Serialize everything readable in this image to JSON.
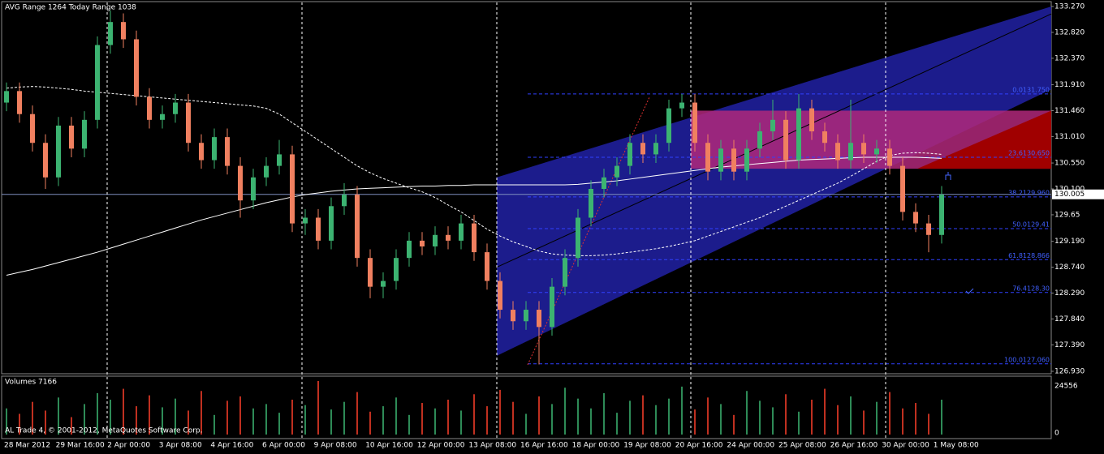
{
  "chart_data": [
    {
      "type": "candlestick",
      "title": "AVG Range 1264   Today Range 1038",
      "up_color": "#3cb371",
      "down_color": "#f08060",
      "ylim": [
        126.93,
        133.27
      ],
      "yticks": [
        {
          "value": 133.27,
          "label": "133.270"
        },
        {
          "value": 132.82,
          "label": "132.820"
        },
        {
          "value": 132.37,
          "label": "132.370"
        },
        {
          "value": 131.91,
          "label": "131.910"
        },
        {
          "value": 131.46,
          "label": "131.460"
        },
        {
          "value": 131.01,
          "label": "131.010"
        },
        {
          "value": 130.55,
          "label": "130.550"
        },
        {
          "value": 130.1,
          "label": "130.100"
        },
        129.65,
        {
          "value": 129.19,
          "label": "129.190"
        },
        {
          "value": 128.74,
          "label": "128.740"
        },
        {
          "value": 128.29,
          "label": "128.290"
        },
        {
          "value": 127.84,
          "label": "127.840"
        },
        {
          "value": 127.39,
          "label": "127.390"
        },
        {
          "value": 126.93,
          "label": "126.930"
        }
      ],
      "last_price": {
        "value": 130.005,
        "label": "130.005"
      },
      "x_labels": [
        "28 Mar 2012",
        "29 Mar 16:00",
        "2 Apr 00:00",
        "3 Apr 08:00",
        "4 Apr 16:00",
        "6 Apr 00:00",
        "9 Apr 08:00",
        "10 Apr 16:00",
        "12 Apr 00:00",
        "13 Apr 08:00",
        "16 Apr 16:00",
        "18 Apr 00:00",
        "19 Apr 08:00",
        "20 Apr 16:00",
        "24 Apr 00:00",
        "25 Apr 08:00",
        "26 Apr 16:00",
        "30 Apr 00:00",
        "1 May 08:00"
      ],
      "ohlc": [
        [
          131.6,
          131.95,
          131.45,
          131.8
        ],
        [
          131.8,
          131.95,
          131.25,
          131.4
        ],
        [
          131.4,
          131.55,
          130.75,
          130.9
        ],
        [
          130.9,
          131.05,
          130.1,
          130.3
        ],
        [
          130.3,
          131.35,
          130.15,
          131.2
        ],
        [
          131.2,
          131.35,
          130.65,
          130.8
        ],
        [
          130.8,
          131.45,
          130.65,
          131.3
        ],
        [
          131.3,
          132.75,
          131.15,
          132.6
        ],
        [
          132.6,
          133.2,
          132.45,
          133.0
        ],
        [
          133.0,
          133.15,
          132.55,
          132.7
        ],
        [
          132.7,
          132.85,
          131.55,
          131.7
        ],
        [
          131.7,
          131.85,
          131.15,
          131.3
        ],
        [
          131.3,
          131.55,
          131.15,
          131.4
        ],
        [
          131.4,
          131.75,
          131.25,
          131.6
        ],
        [
          131.6,
          131.75,
          130.75,
          130.9
        ],
        [
          130.9,
          131.05,
          130.45,
          130.6
        ],
        [
          130.6,
          131.15,
          130.45,
          131.0
        ],
        [
          131.0,
          131.15,
          130.35,
          130.5
        ],
        [
          130.5,
          130.65,
          129.6,
          129.9
        ],
        [
          129.9,
          130.45,
          129.75,
          130.3
        ],
        [
          130.3,
          130.65,
          130.15,
          130.5
        ],
        [
          130.5,
          130.95,
          130.35,
          130.7
        ],
        [
          130.7,
          130.85,
          129.35,
          129.5
        ],
        [
          129.5,
          129.75,
          129.3,
          129.6
        ],
        [
          129.6,
          129.75,
          129.05,
          129.2
        ],
        [
          129.2,
          129.95,
          129.05,
          129.8
        ],
        [
          129.8,
          130.2,
          129.65,
          130.0
        ],
        [
          130.0,
          130.15,
          128.75,
          128.9
        ],
        [
          128.9,
          129.05,
          128.2,
          128.4
        ],
        [
          128.4,
          128.65,
          128.2,
          128.5
        ],
        [
          128.5,
          129.05,
          128.35,
          128.9
        ],
        [
          128.9,
          129.35,
          128.75,
          129.2
        ],
        [
          129.2,
          129.35,
          128.95,
          129.1
        ],
        [
          129.1,
          129.45,
          128.95,
          129.3
        ],
        [
          129.3,
          129.45,
          129.05,
          129.2
        ],
        [
          129.2,
          129.65,
          129.05,
          129.5
        ],
        [
          129.5,
          129.65,
          128.85,
          129.0
        ],
        [
          129.0,
          129.15,
          128.35,
          128.5
        ],
        [
          128.5,
          128.65,
          127.85,
          128.0
        ],
        [
          128.0,
          128.15,
          127.65,
          127.8
        ],
        [
          127.8,
          128.15,
          127.65,
          128.0
        ],
        [
          128.0,
          128.15,
          127.05,
          127.7
        ],
        [
          127.7,
          128.55,
          127.55,
          128.4
        ],
        [
          128.4,
          129.05,
          128.25,
          128.9
        ],
        [
          128.9,
          129.75,
          128.75,
          129.6
        ],
        [
          129.6,
          130.25,
          129.45,
          130.1
        ],
        [
          130.1,
          130.45,
          129.95,
          130.3
        ],
        [
          130.3,
          130.65,
          130.15,
          130.5
        ],
        [
          130.5,
          131.05,
          130.35,
          130.9
        ],
        [
          130.9,
          131.05,
          130.55,
          130.7
        ],
        [
          130.7,
          131.05,
          130.55,
          130.9
        ],
        [
          130.9,
          131.65,
          130.75,
          131.5
        ],
        [
          131.5,
          131.75,
          131.35,
          131.6
        ],
        [
          131.6,
          131.75,
          130.75,
          130.9
        ],
        [
          130.9,
          131.05,
          130.25,
          130.4
        ],
        [
          130.4,
          130.95,
          130.25,
          130.8
        ],
        [
          130.8,
          130.95,
          130.25,
          130.4
        ],
        [
          130.4,
          130.95,
          130.25,
          130.8
        ],
        [
          130.8,
          131.25,
          130.65,
          131.1
        ],
        [
          131.1,
          131.65,
          130.95,
          131.3
        ],
        [
          131.3,
          131.45,
          130.45,
          130.6
        ],
        [
          130.6,
          131.75,
          130.45,
          131.5
        ],
        [
          131.5,
          131.65,
          130.95,
          131.1
        ],
        [
          131.1,
          131.25,
          130.75,
          130.9
        ],
        [
          130.9,
          131.05,
          130.45,
          130.6
        ],
        [
          130.6,
          131.65,
          130.45,
          130.9
        ],
        [
          130.9,
          131.05,
          130.55,
          130.7
        ],
        [
          130.7,
          130.95,
          130.55,
          130.8
        ],
        [
          130.8,
          130.95,
          130.35,
          130.5
        ],
        [
          130.5,
          130.65,
          129.55,
          129.7
        ],
        [
          129.7,
          129.85,
          129.35,
          129.5
        ],
        [
          129.5,
          129.65,
          129.0,
          129.3
        ],
        [
          129.3,
          130.15,
          129.15,
          130.0
        ]
      ],
      "series": [
        {
          "name": "MA slow",
          "color": "#ffffff",
          "style": "solid",
          "values": [
            128.6,
            128.65,
            128.7,
            128.76,
            128.82,
            128.88,
            128.94,
            129.0,
            129.07,
            129.14,
            129.21,
            129.28,
            129.35,
            129.42,
            129.49,
            129.56,
            129.62,
            129.68,
            129.74,
            129.8,
            129.86,
            129.91,
            129.96,
            130.0,
            130.03,
            130.06,
            130.08,
            130.1,
            130.11,
            130.12,
            130.13,
            130.14,
            130.15,
            130.15,
            130.16,
            130.16,
            130.17,
            130.17,
            130.17,
            130.17,
            130.17,
            130.17,
            130.17,
            130.17,
            130.18,
            130.2,
            130.22,
            130.24,
            130.27,
            130.3,
            130.33,
            130.36,
            130.39,
            130.42,
            130.45,
            130.48,
            130.5,
            130.52,
            130.54,
            130.56,
            130.58,
            130.6,
            130.61,
            130.62,
            130.63,
            130.64,
            130.65,
            130.65,
            130.65,
            130.65,
            130.65,
            130.64,
            130.63
          ]
        },
        {
          "name": "MA fast",
          "color": "#ffffff",
          "style": "dashed",
          "values": [
            131.85,
            131.87,
            131.88,
            131.87,
            131.85,
            131.83,
            131.8,
            131.78,
            131.76,
            131.74,
            131.72,
            131.7,
            131.68,
            131.66,
            131.64,
            131.62,
            131.6,
            131.58,
            131.56,
            131.54,
            131.5,
            131.4,
            131.25,
            131.1,
            130.95,
            130.8,
            130.65,
            130.5,
            130.38,
            130.28,
            130.2,
            130.12,
            130.05,
            129.95,
            129.82,
            129.7,
            129.55,
            129.4,
            129.28,
            129.18,
            129.1,
            129.02,
            128.97,
            128.95,
            128.94,
            128.94,
            128.95,
            128.97,
            129.0,
            129.03,
            129.06,
            129.1,
            129.15,
            129.2,
            129.28,
            129.36,
            129.44,
            129.52,
            129.6,
            129.7,
            129.8,
            129.9,
            130.0,
            130.1,
            130.2,
            130.32,
            130.45,
            130.58,
            130.68,
            130.72,
            130.73,
            130.72,
            130.7
          ]
        }
      ],
      "channel": {
        "color": "#1c1c8c",
        "upper": [
          130.3,
          133.27
        ],
        "middle": [
          128.74,
          133.14
        ],
        "lower": [
          127.2,
          131.83
        ]
      },
      "zone": {
        "color": "#b0287a",
        "top": 131.46,
        "bottom": 130.45
      },
      "fibo": [
        {
          "level": 131.75,
          "label": "0.0131.750"
        },
        {
          "level": 130.65,
          "label": "23.6130.650"
        },
        {
          "level": 129.96,
          "label": "38.2129.960"
        },
        {
          "level": 129.41,
          "label": "50.0129.41"
        },
        {
          "level": 128.87,
          "label": "61.8128.866"
        },
        {
          "level": 128.3,
          "label": "76.4128.30"
        },
        {
          "level": 127.06,
          "label": "100.0127.060"
        }
      ]
    },
    {
      "type": "volume",
      "title": "Volumes 7166",
      "ylim": [
        0,
        24556
      ],
      "yticks": [
        24556,
        0
      ],
      "values": [
        12000,
        9500,
        15000,
        11000,
        17000,
        8000,
        14000,
        19000,
        16000,
        21000,
        13000,
        18000,
        12500,
        16500,
        11000,
        20000,
        9000,
        15500,
        17500,
        12000,
        14000,
        10000,
        16000,
        13500,
        24556,
        11500,
        15000,
        19500,
        10500,
        13000,
        17000,
        9000,
        14500,
        12000,
        16000,
        11000,
        18500,
        13000,
        20500,
        15000,
        9500,
        17500,
        14000,
        21500,
        16500,
        12000,
        19000,
        10000,
        15500,
        18000,
        13500,
        16500,
        22000,
        11500,
        17000,
        14000,
        9000,
        20000,
        15500,
        12500,
        18500,
        10500,
        16000,
        21000,
        13500,
        17500,
        11000,
        15000,
        19500,
        12000,
        14500,
        9500,
        16000
      ]
    }
  ],
  "footer": "AL Trade 4, © 2001-2012, MetaQuotes Software Corp."
}
